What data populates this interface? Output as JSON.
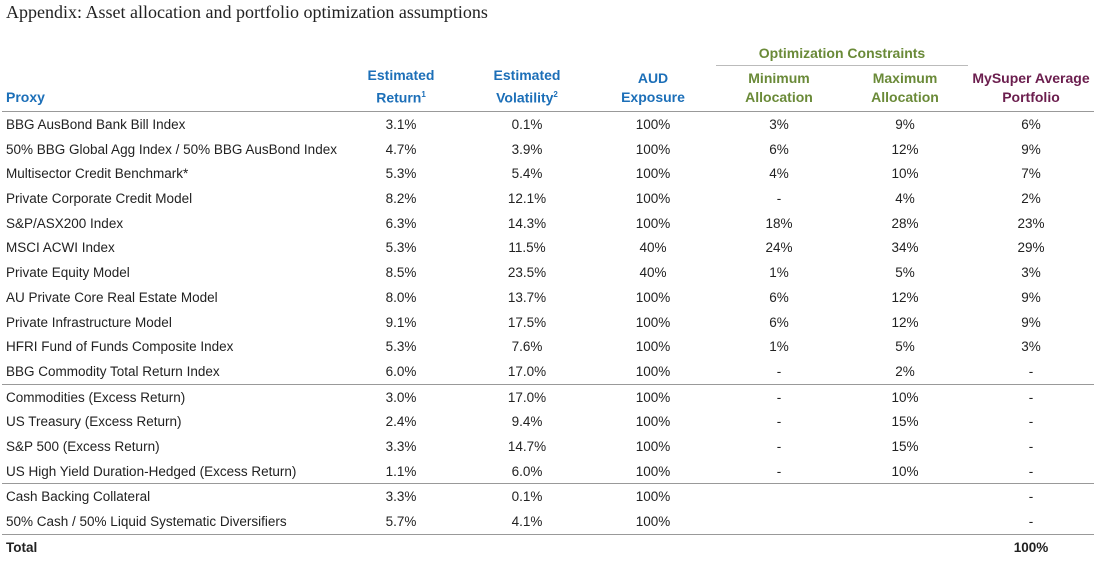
{
  "title": "Appendix: Asset allocation and portfolio optimization assumptions",
  "group_header": "Optimization Constraints",
  "columns": [
    {
      "lines": [
        "Proxy"
      ]
    },
    {
      "lines": [
        "Estimated",
        "Return"
      ],
      "note": "1"
    },
    {
      "lines": [
        "Estimated",
        "Volatility"
      ],
      "note": "2"
    },
    {
      "lines": [
        "AUD",
        "Exposure"
      ]
    },
    {
      "lines": [
        "Minimum",
        "Allocation"
      ]
    },
    {
      "lines": [
        "Maximum",
        "Allocation"
      ]
    },
    {
      "lines": [
        "MySuper Average",
        "Portfolio"
      ]
    }
  ],
  "rows": [
    [
      "BBG AusBond Bank Bill Index",
      "3.1%",
      "0.1%",
      "100%",
      "3%",
      "9%",
      "6%"
    ],
    [
      "50% BBG Global Agg Index / 50% BBG AusBond Index",
      "4.7%",
      "3.9%",
      "100%",
      "6%",
      "12%",
      "9%"
    ],
    [
      "Multisector Credit Benchmark*",
      "5.3%",
      "5.4%",
      "100%",
      "4%",
      "10%",
      "7%"
    ],
    [
      "Private Corporate Credit Model",
      "8.2%",
      "12.1%",
      "100%",
      "-",
      "4%",
      "2%"
    ],
    [
      "S&P/ASX200 Index",
      "6.3%",
      "14.3%",
      "100%",
      "18%",
      "28%",
      "23%"
    ],
    [
      "MSCI ACWI Index",
      "5.3%",
      "11.5%",
      "40%",
      "24%",
      "34%",
      "29%"
    ],
    [
      "Private Equity Model",
      "8.5%",
      "23.5%",
      "40%",
      "1%",
      "5%",
      "3%"
    ],
    [
      "AU Private Core Real Estate Model",
      "8.0%",
      "13.7%",
      "100%",
      "6%",
      "12%",
      "9%"
    ],
    [
      "Private Infrastructure Model",
      "9.1%",
      "17.5%",
      "100%",
      "6%",
      "12%",
      "9%"
    ],
    [
      "HFRI Fund of Funds Composite Index",
      "5.3%",
      "7.6%",
      "100%",
      "1%",
      "5%",
      "3%"
    ],
    [
      "BBG Commodity Total Return Index",
      "6.0%",
      "17.0%",
      "100%",
      "-",
      "2%",
      "-"
    ],
    [
      "Commodities (Excess Return)",
      "3.0%",
      "17.0%",
      "100%",
      "-",
      "10%",
      "-"
    ],
    [
      "US Treasury (Excess Return)",
      "2.4%",
      "9.4%",
      "100%",
      "-",
      "15%",
      "-"
    ],
    [
      "S&P 500 (Excess Return)",
      "3.3%",
      "14.7%",
      "100%",
      "-",
      "15%",
      "-"
    ],
    [
      "US High Yield Duration-Hedged (Excess Return)",
      "1.1%",
      "6.0%",
      "100%",
      "-",
      "10%",
      "-"
    ],
    [
      "Cash Backing Collateral",
      "3.3%",
      "0.1%",
      "100%",
      null,
      null,
      "-"
    ],
    [
      "50% Cash / 50% Liquid Systematic Diversifiers",
      "5.7%",
      "4.1%",
      "100%",
      null,
      null,
      "-"
    ]
  ],
  "total": {
    "label": "Total",
    "value": "100%"
  }
}
